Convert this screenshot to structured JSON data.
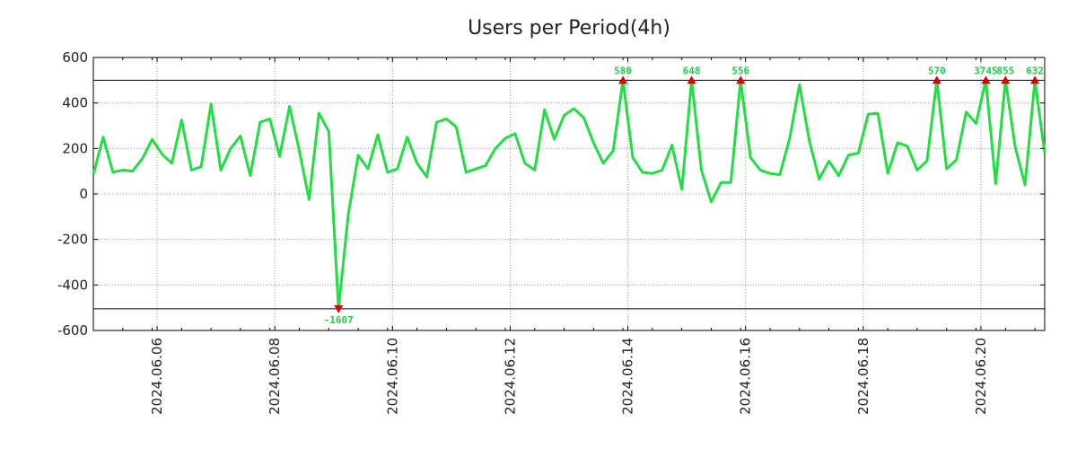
{
  "chart_data": {
    "type": "line",
    "title": "Users per Period(4h)",
    "xlabel": "",
    "ylabel": "",
    "ylim": [
      -600,
      600
    ],
    "yticks": [
      600,
      400,
      200,
      0,
      -200,
      -400,
      -600
    ],
    "x_start": "2024-06-04 22:00",
    "x_end": "2024-06-21 02:00",
    "step_hours": 4,
    "xticks": [
      {
        "label": "2024.06.06",
        "date": "2024-06-06 00:00"
      },
      {
        "label": "2024.06.08",
        "date": "2024-06-08 00:00"
      },
      {
        "label": "2024.06.10",
        "date": "2024-06-10 00:00"
      },
      {
        "label": "2024.06.12",
        "date": "2024-06-12 00:00"
      },
      {
        "label": "2024.06.14",
        "date": "2024-06-14 00:00"
      },
      {
        "label": "2024.06.16",
        "date": "2024-06-16 00:00"
      },
      {
        "label": "2024.06.18",
        "date": "2024-06-18 00:00"
      },
      {
        "label": "2024.06.20",
        "date": "2024-06-20 00:00"
      }
    ],
    "thresholds": {
      "upper": 500,
      "lower": -505
    },
    "series": [
      {
        "name": "Users",
        "color": "#22dd44",
        "values": [
          85,
          250,
          95,
          105,
          100,
          155,
          240,
          175,
          135,
          325,
          105,
          120,
          395,
          105,
          200,
          255,
          80,
          315,
          330,
          165,
          385,
          190,
          -25,
          355,
          275,
          -505,
          -90,
          170,
          110,
          260,
          95,
          110,
          250,
          135,
          75,
          315,
          330,
          295,
          95,
          110,
          125,
          200,
          245,
          265,
          135,
          105,
          370,
          240,
          345,
          375,
          335,
          225,
          135,
          190,
          500,
          160,
          95,
          90,
          105,
          215,
          20,
          500,
          105,
          -35,
          50,
          50,
          500,
          160,
          105,
          90,
          85,
          245,
          480,
          235,
          65,
          145,
          80,
          170,
          180,
          350,
          355,
          90,
          225,
          210,
          105,
          145,
          500,
          110,
          150,
          360,
          310,
          500,
          45,
          500,
          205,
          40,
          500,
          180
        ]
      }
    ],
    "annotations": [
      {
        "index": 25,
        "label": "-1607",
        "marker": "down"
      },
      {
        "index": 54,
        "label": "580",
        "marker": "up"
      },
      {
        "index": 61,
        "label": "648",
        "marker": "up"
      },
      {
        "index": 66,
        "label": "556",
        "marker": "up"
      },
      {
        "index": 86,
        "label": "570",
        "marker": "up"
      },
      {
        "index": 91,
        "label": "3745",
        "marker": "up"
      },
      {
        "index": 93,
        "label": "855",
        "marker": "up"
      },
      {
        "index": 96,
        "label": "632",
        "marker": "up"
      }
    ],
    "colors": {
      "marker": "#dd0000",
      "annotation_text": "#22cc44",
      "grid": "#999999",
      "threshold_line": "#000000"
    }
  }
}
